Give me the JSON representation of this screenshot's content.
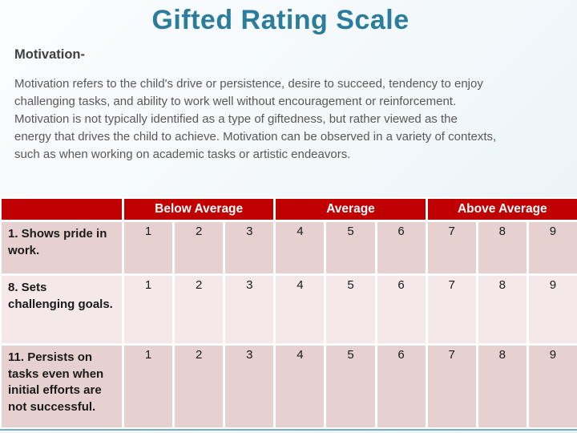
{
  "slide": {
    "title": "Gifted Rating Scale",
    "section_label": "Motivation-",
    "body_text": "Motivation refers to the child's drive or persistence, desire to succeed, tendency to enjoy\nchallenging tasks, and ability to work well without encouragement or reinforcement.\nMotivation is not typically identified as a type of giftedness, but rather viewed as the\nenergy that drives the child to achieve. Motivation can be observed in a variety of contexts,\nsuch as when working on academic tasks or artistic endeavors."
  },
  "colors": {
    "title": "#2c7c9c",
    "header_bg": "#c00000",
    "band_dark": "#e7d0d0",
    "band_light": "#f4e8e8",
    "accent_line": "#7aadc2"
  },
  "table": {
    "corner_label": "",
    "column_groups": [
      {
        "label": "Below Average"
      },
      {
        "label": "Average"
      },
      {
        "label": "Above Average"
      }
    ],
    "rows": [
      {
        "label": "1. Shows pride in work.",
        "ratings": [
          "1",
          "2",
          "3",
          "4",
          "5",
          "6",
          "7",
          "8",
          "9"
        ]
      },
      {
        "label": "8. Sets challenging goals.",
        "ratings": [
          "1",
          "2",
          "3",
          "4",
          "5",
          "6",
          "7",
          "8",
          "9"
        ]
      },
      {
        "label": "11. Persists on tasks even when initial efforts are not successful.",
        "ratings": [
          "1",
          "2",
          "3",
          "4",
          "5",
          "6",
          "7",
          "8",
          "9"
        ]
      }
    ]
  }
}
